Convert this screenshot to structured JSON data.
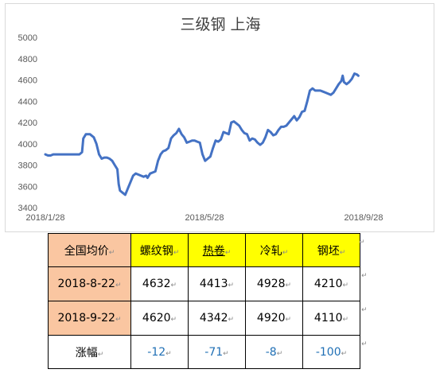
{
  "chart_data": {
    "type": "line",
    "title": "三级钢    上海",
    "xlabel": "",
    "ylabel": "",
    "ylim": [
      3400,
      5000
    ],
    "yticks": [
      3400,
      3600,
      3800,
      4000,
      4200,
      4400,
      4600,
      4800,
      5000
    ],
    "xticks": [
      "2018/1/28",
      "2018/5/28",
      "2018/9/28"
    ],
    "x_range_days": [
      0,
      243
    ],
    "grid": false,
    "line_color": "#4472c4",
    "series": [
      {
        "name": "",
        "points": [
          [
            0,
            3900
          ],
          [
            2,
            3890
          ],
          [
            4,
            3890
          ],
          [
            6,
            3900
          ],
          [
            10,
            3900
          ],
          [
            14,
            3900
          ],
          [
            18,
            3900
          ],
          [
            22,
            3900
          ],
          [
            26,
            3900
          ],
          [
            28,
            3920
          ],
          [
            29,
            4050
          ],
          [
            31,
            4090
          ],
          [
            34,
            4090
          ],
          [
            37,
            4060
          ],
          [
            39,
            4000
          ],
          [
            41,
            3900
          ],
          [
            43,
            3860
          ],
          [
            45,
            3870
          ],
          [
            47,
            3870
          ],
          [
            49,
            3860
          ],
          [
            51,
            3840
          ],
          [
            53,
            3800
          ],
          [
            55,
            3760
          ],
          [
            56,
            3620
          ],
          [
            57,
            3560
          ],
          [
            59,
            3540
          ],
          [
            61,
            3520
          ],
          [
            63,
            3580
          ],
          [
            65,
            3640
          ],
          [
            67,
            3700
          ],
          [
            69,
            3720
          ],
          [
            71,
            3710
          ],
          [
            73,
            3700
          ],
          [
            75,
            3690
          ],
          [
            77,
            3700
          ],
          [
            78,
            3680
          ],
          [
            80,
            3720
          ],
          [
            82,
            3730
          ],
          [
            84,
            3740
          ],
          [
            86,
            3840
          ],
          [
            88,
            3900
          ],
          [
            90,
            3930
          ],
          [
            92,
            3940
          ],
          [
            94,
            3960
          ],
          [
            96,
            4050
          ],
          [
            98,
            4080
          ],
          [
            100,
            4100
          ],
          [
            102,
            4140
          ],
          [
            104,
            4090
          ],
          [
            106,
            4060
          ],
          [
            108,
            4010
          ],
          [
            110,
            4020
          ],
          [
            112,
            4030
          ],
          [
            114,
            4030
          ],
          [
            116,
            4020
          ],
          [
            118,
            4010
          ],
          [
            120,
            3900
          ],
          [
            122,
            3840
          ],
          [
            124,
            3860
          ],
          [
            126,
            3880
          ],
          [
            128,
            3960
          ],
          [
            130,
            4030
          ],
          [
            132,
            4020
          ],
          [
            134,
            4040
          ],
          [
            136,
            4110
          ],
          [
            138,
            4100
          ],
          [
            140,
            4090
          ],
          [
            142,
            4200
          ],
          [
            144,
            4210
          ],
          [
            146,
            4190
          ],
          [
            148,
            4170
          ],
          [
            150,
            4130
          ],
          [
            152,
            4100
          ],
          [
            154,
            4090
          ],
          [
            156,
            4030
          ],
          [
            158,
            4050
          ],
          [
            160,
            4040
          ],
          [
            162,
            4010
          ],
          [
            164,
            3990
          ],
          [
            166,
            4010
          ],
          [
            168,
            4060
          ],
          [
            170,
            4130
          ],
          [
            172,
            4110
          ],
          [
            174,
            4080
          ],
          [
            176,
            4090
          ],
          [
            178,
            4130
          ],
          [
            180,
            4160
          ],
          [
            182,
            4160
          ],
          [
            184,
            4170
          ],
          [
            186,
            4200
          ],
          [
            188,
            4230
          ],
          [
            190,
            4260
          ],
          [
            192,
            4220
          ],
          [
            194,
            4250
          ],
          [
            196,
            4300
          ],
          [
            198,
            4310
          ],
          [
            200,
            4400
          ],
          [
            202,
            4500
          ],
          [
            204,
            4520
          ],
          [
            206,
            4500
          ],
          [
            208,
            4500
          ],
          [
            210,
            4500
          ],
          [
            212,
            4490
          ],
          [
            214,
            4480
          ],
          [
            216,
            4470
          ],
          [
            218,
            4460
          ],
          [
            220,
            4480
          ],
          [
            222,
            4520
          ],
          [
            224,
            4560
          ],
          [
            226,
            4590
          ],
          [
            227,
            4640
          ],
          [
            228,
            4580
          ],
          [
            230,
            4560
          ],
          [
            232,
            4580
          ],
          [
            234,
            4610
          ],
          [
            236,
            4660
          ],
          [
            238,
            4650
          ],
          [
            239,
            4640
          ]
        ]
      }
    ]
  },
  "table": {
    "header": [
      "全国均价",
      "螺纹钢",
      "热卷",
      "冷轧",
      "钢坯"
    ],
    "rows": [
      {
        "label": "2018-8-22",
        "values": [
          "4632",
          "4413",
          "4928",
          "4210"
        ]
      },
      {
        "label": "2018-9-22",
        "values": [
          "4620",
          "4342",
          "4920",
          "4110"
        ]
      }
    ],
    "change": {
      "label": "涨幅",
      "values": [
        "-12",
        "-71",
        "-8",
        "-100"
      ]
    },
    "colors": {
      "label_bg": "#fac6a1",
      "header_bg": "#ffff00",
      "change_text": "#1f6fb5"
    },
    "cell_mark": "↵"
  }
}
